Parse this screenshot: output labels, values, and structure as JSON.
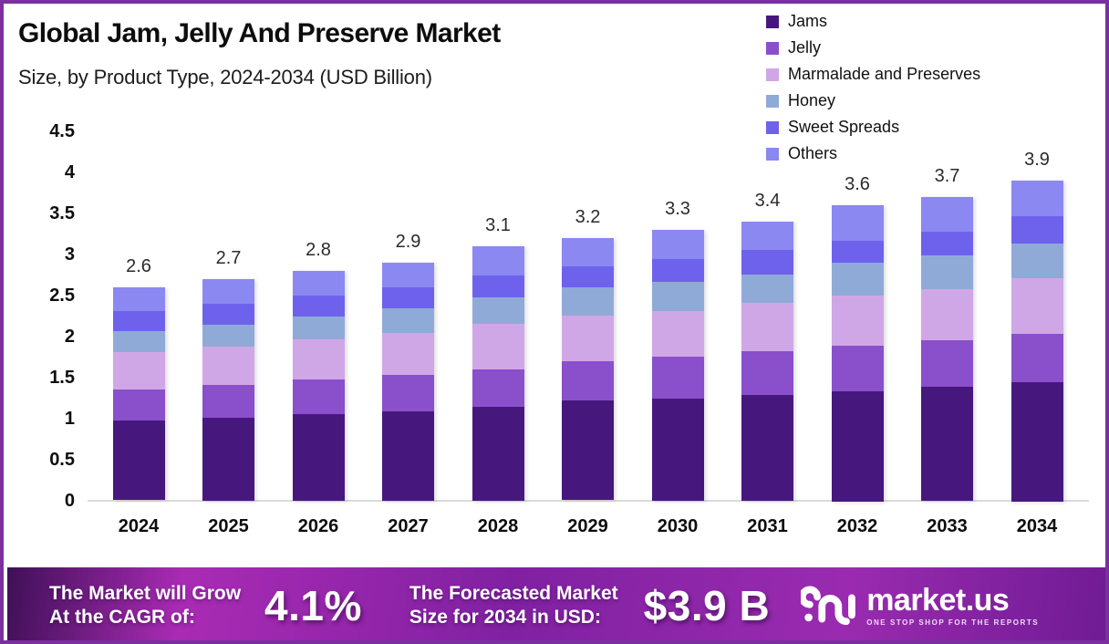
{
  "frame": {
    "border_color": "#7c2f9f",
    "background": "#ffffff"
  },
  "header": {
    "title": "Global Jam, Jelly And Preserve Market",
    "subtitle": "Size, by Product Type, 2024-2034 (USD Billion)"
  },
  "chart_data": {
    "type": "bar",
    "stacked": true,
    "title": "Global Jam, Jelly And Preserve Market Size, by Product Type, 2024-2034 (USD Billion)",
    "unit": "USD Billion",
    "categories": [
      "2024",
      "2025",
      "2026",
      "2027",
      "2028",
      "2029",
      "2030",
      "2031",
      "2032",
      "2033",
      "2034"
    ],
    "series": [
      {
        "name": "Jams",
        "color": "#46187e",
        "values": [
          0.97,
          1.01,
          1.05,
          1.09,
          1.14,
          1.21,
          1.24,
          1.29,
          1.34,
          1.39,
          1.45
        ]
      },
      {
        "name": "Jelly",
        "color": "#8a4fca",
        "values": [
          0.38,
          0.4,
          0.42,
          0.44,
          0.46,
          0.48,
          0.51,
          0.53,
          0.55,
          0.57,
          0.59
        ]
      },
      {
        "name": "Marmalade and Preserves",
        "color": "#d0a7e6",
        "values": [
          0.46,
          0.47,
          0.49,
          0.51,
          0.55,
          0.56,
          0.55,
          0.59,
          0.61,
          0.62,
          0.68
        ]
      },
      {
        "name": "Honey",
        "color": "#90aad8",
        "values": [
          0.26,
          0.27,
          0.28,
          0.3,
          0.32,
          0.34,
          0.36,
          0.34,
          0.4,
          0.41,
          0.42
        ]
      },
      {
        "name": "Sweet Spreads",
        "color": "#6e62ec",
        "values": [
          0.24,
          0.25,
          0.26,
          0.26,
          0.27,
          0.26,
          0.28,
          0.3,
          0.27,
          0.29,
          0.33
        ]
      },
      {
        "name": "Others",
        "color": "#8b88f1",
        "values": [
          0.29,
          0.3,
          0.3,
          0.3,
          0.36,
          0.35,
          0.36,
          0.35,
          0.43,
          0.42,
          0.43
        ]
      }
    ],
    "totals_labels": [
      "2.6",
      "2.7",
      "2.8",
      "2.9",
      "3.1",
      "3.2",
      "3.3",
      "3.4",
      "3.6",
      "3.7",
      "3.9"
    ],
    "y_ticks": [
      "0",
      "0.5",
      "1",
      "1.5",
      "2",
      "2.5",
      "3",
      "3.5",
      "4",
      "4.5"
    ],
    "ylim": [
      0,
      4.5
    ],
    "grid": false,
    "legend_position": "top-right",
    "axis_line_color": "#dadada"
  },
  "banner": {
    "cagr_label_line1": "The Market will Grow",
    "cagr_label_line2": "At the CAGR of:",
    "cagr_value": "4.1%",
    "forecast_label_line1": "The Forecasted Market",
    "forecast_label_line2": "Size for 2034 in USD:",
    "forecast_value": "$3.9 B",
    "logo": {
      "name": "market.us",
      "tagline": "ONE STOP SHOP FOR THE REPORTS"
    }
  }
}
